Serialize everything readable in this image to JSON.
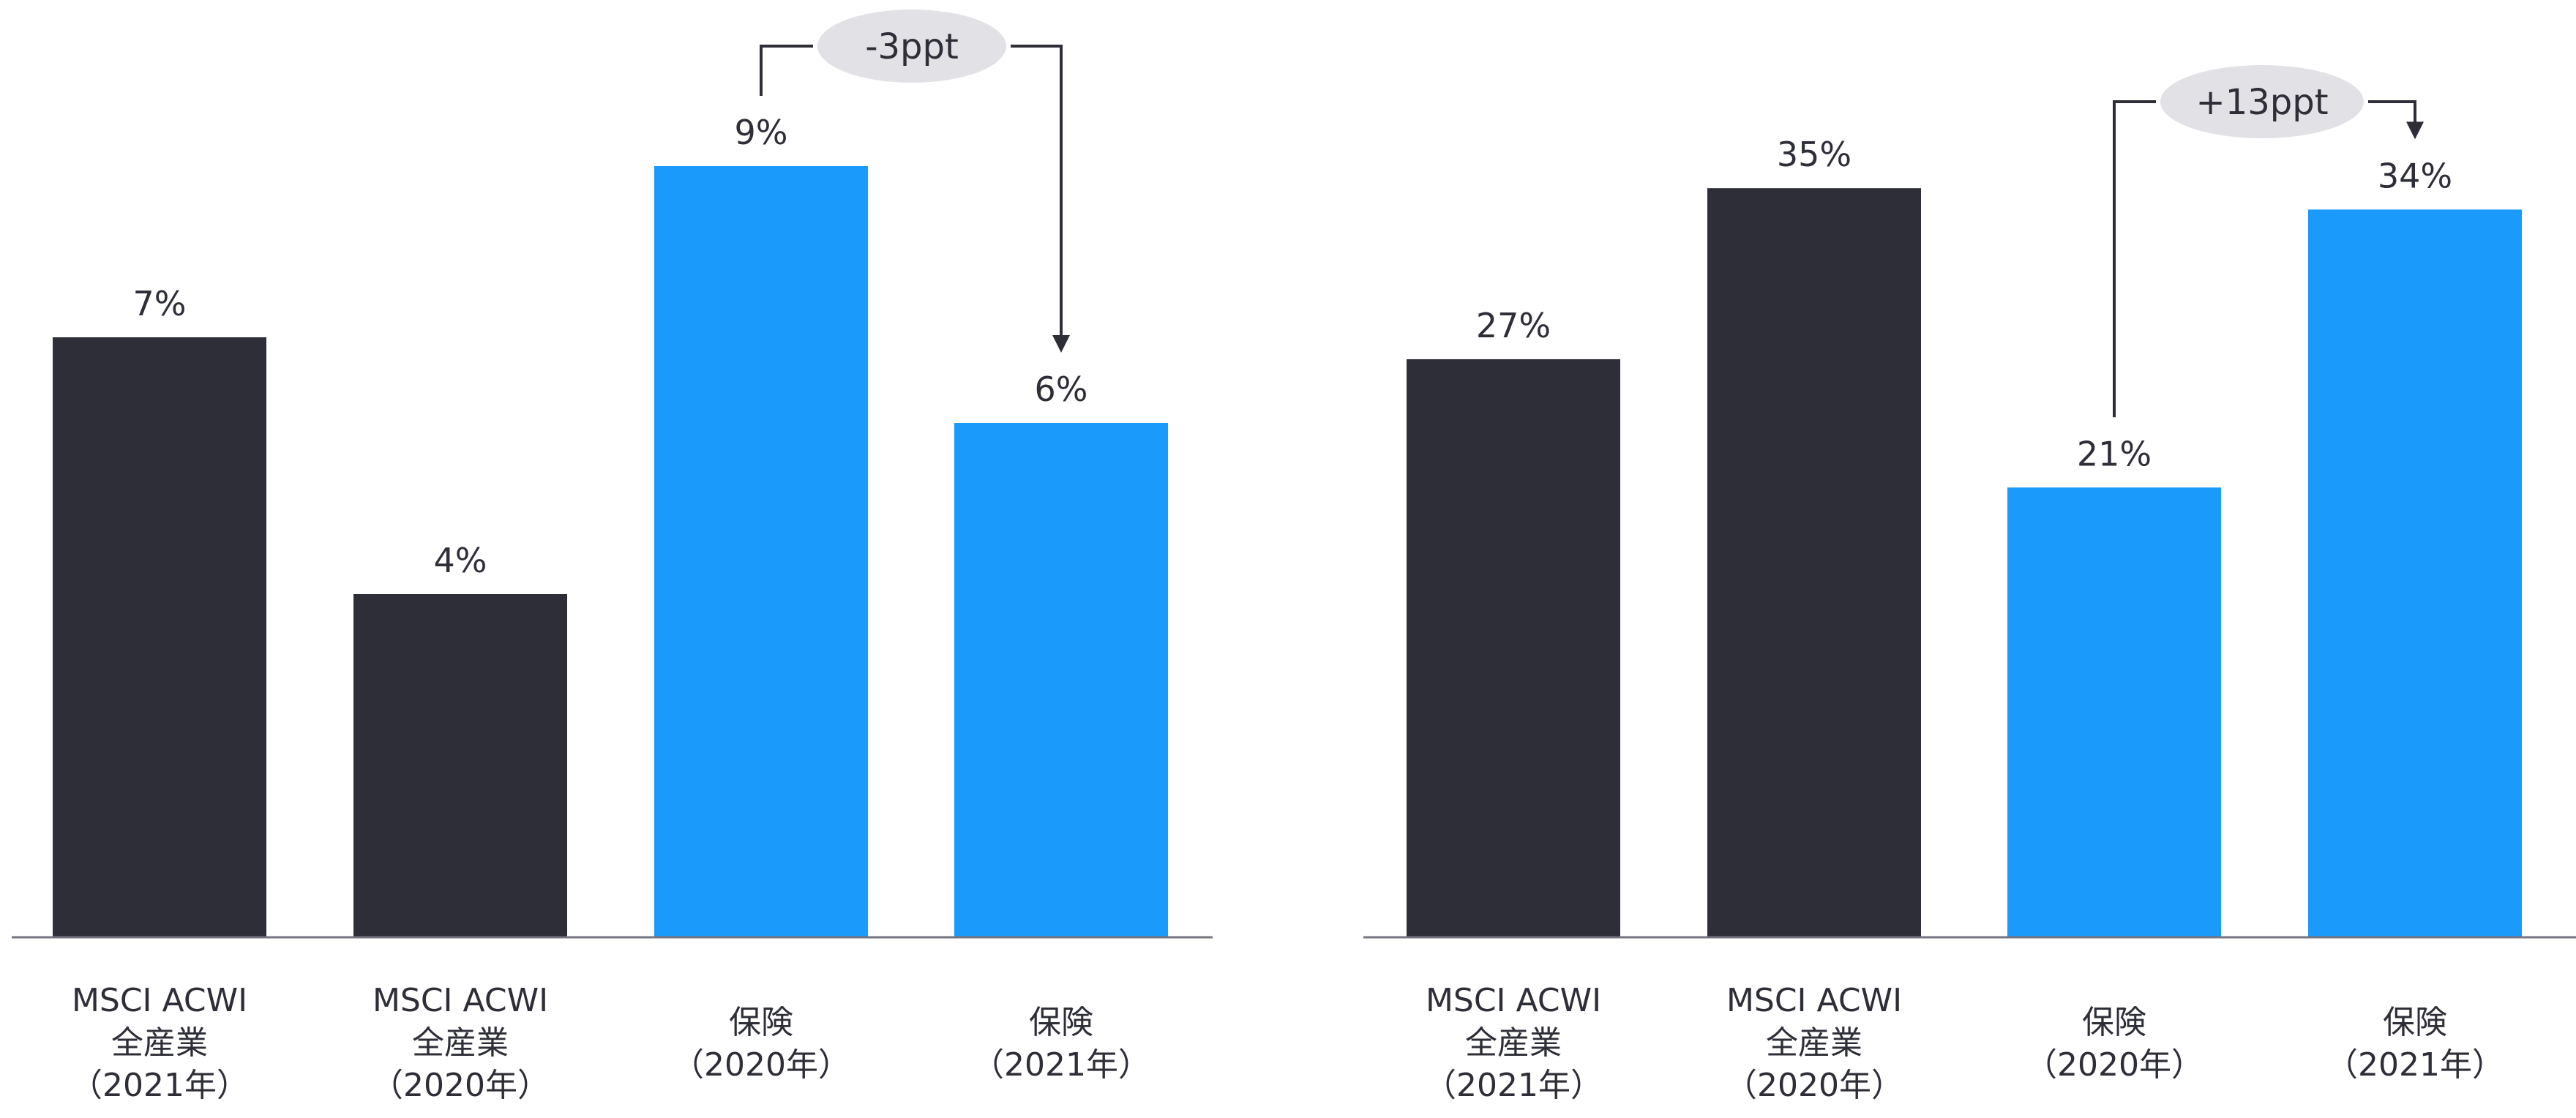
{
  "colors": {
    "dark": "#2e2e38",
    "blue": "#1a9afa",
    "bubble": "#e2e2e6",
    "axis": "#747480"
  },
  "chart_data": [
    {
      "type": "bar",
      "title": "",
      "categories": [
        "MSCI ACWI\n全産業\n（2021年）",
        "MSCI ACWI\n全産業\n（2020年）",
        "保険\n（2020年）",
        "保険\n（2021年）"
      ],
      "values": [
        7,
        4,
        9,
        6
      ],
      "labels": [
        "7%",
        "4%",
        "9%",
        "6%"
      ],
      "bar_colors": [
        "dark",
        "dark",
        "blue",
        "blue"
      ],
      "ylim": [
        0,
        10.94
      ],
      "annotation": {
        "text": "-3ppt",
        "from": 2,
        "to": 3
      }
    },
    {
      "type": "bar",
      "title": "",
      "categories": [
        "MSCI ACWI\n全産業\n（2021年）",
        "MSCI ACWI\n全産業\n（2020年）",
        "保険\n（2020年）",
        "保険\n（2021年）"
      ],
      "values": [
        27,
        35,
        21,
        34
      ],
      "labels": [
        "27%",
        "35%",
        "21%",
        "34%"
      ],
      "bar_colors": [
        "dark",
        "dark",
        "blue",
        "blue"
      ],
      "ylim": [
        0,
        43.8
      ],
      "annotation": {
        "text": "+13ppt",
        "from": 2,
        "to": 3
      }
    }
  ]
}
